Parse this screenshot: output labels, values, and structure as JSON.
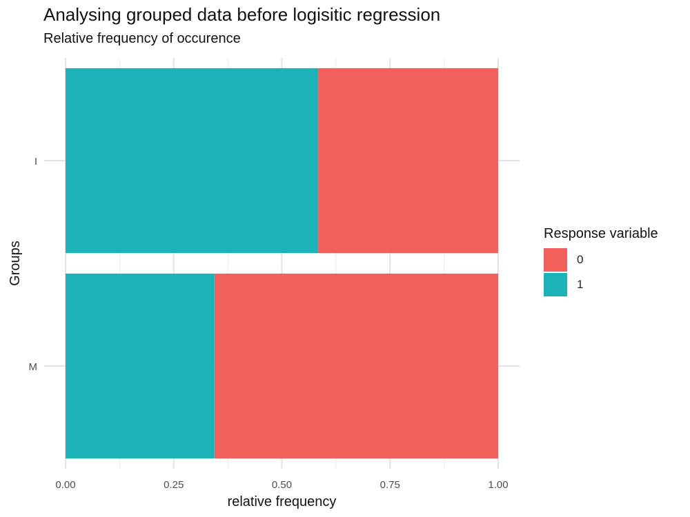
{
  "title": "Analysing grouped data before logisitic regression",
  "subtitle": "Relative frequency of occurence",
  "chart_data": {
    "type": "bar",
    "orientation": "horizontal",
    "stacked": true,
    "categories": [
      "I",
      "M"
    ],
    "series": [
      {
        "name": "1",
        "color": "#1CB3B8",
        "values": [
          0.583,
          0.344
        ]
      },
      {
        "name": "0",
        "color": "#F2605C",
        "values": [
          0.417,
          0.656
        ]
      }
    ],
    "xlabel": "relative frequency",
    "ylabel": "Groups",
    "xlim": [
      0,
      1
    ],
    "xticks": [
      "0.00",
      "0.25",
      "0.50",
      "0.75",
      "1.00"
    ],
    "grid": true,
    "legend": {
      "title": "Response variable",
      "position": "right",
      "entries": [
        {
          "label": "0",
          "color": "#F2605C"
        },
        {
          "label": "1",
          "color": "#1CB3B8"
        }
      ]
    }
  }
}
